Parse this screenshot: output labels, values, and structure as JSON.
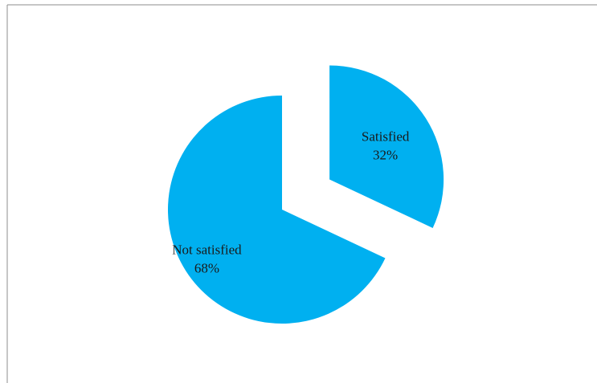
{
  "chart_data": {
    "type": "pie",
    "title": "",
    "categories": [
      "Satisfied",
      "Not satisfied"
    ],
    "values": [
      32,
      68
    ],
    "labels": [
      {
        "name": "Satisfied",
        "percent": "32%"
      },
      {
        "name": "Not satisfied",
        "percent": "68%"
      }
    ],
    "colors": [
      "#00b0f0",
      "#00b0f0"
    ],
    "exploded": [
      "Satisfied"
    ],
    "start_angle_deg": 0,
    "direction": "clockwise",
    "legend": "none"
  }
}
